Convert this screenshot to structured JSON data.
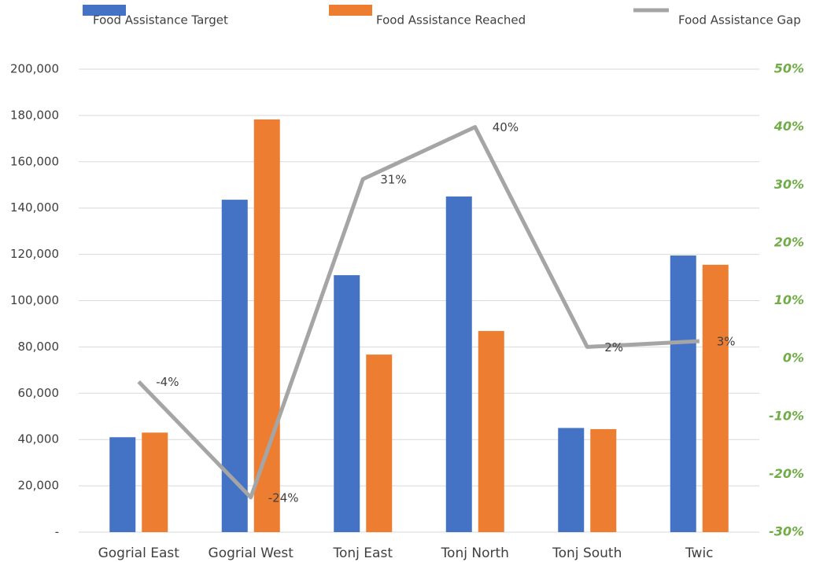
{
  "chart_data": {
    "type": "bar-line",
    "categories": [
      "Gogrial East",
      "Gogrial West",
      "Tonj East",
      "Tonj North",
      "Tonj South",
      "Twic"
    ],
    "series": [
      {
        "name": "Food Assistance Target",
        "color": "#4472c4",
        "values": [
          41000,
          143600,
          111000,
          145000,
          45000,
          119500
        ]
      },
      {
        "name": "Food Assistance Reached",
        "color": "#ed7d31",
        "values": [
          43000,
          178300,
          76700,
          86900,
          44500,
          115500
        ]
      },
      {
        "name": "Food Assistance Gap",
        "color": "#a5a5a5",
        "axis": "y2",
        "values": [
          -4,
          -24,
          31,
          40,
          2,
          3
        ],
        "value_labels": [
          "-4%",
          "-24%",
          "31%",
          "40%",
          "2%",
          "3%"
        ]
      }
    ],
    "ylim": [
      0,
      200000
    ],
    "yticks": [
      {
        "value": 0,
        "label": "-"
      },
      {
        "value": 20000,
        "label": "20,000"
      },
      {
        "value": 40000,
        "label": "40,000"
      },
      {
        "value": 60000,
        "label": "60,000"
      },
      {
        "value": 80000,
        "label": "80,000"
      },
      {
        "value": 100000,
        "label": "100,000"
      },
      {
        "value": 120000,
        "label": "120,000"
      },
      {
        "value": 140000,
        "label": "140,000"
      },
      {
        "value": 160000,
        "label": "160,000"
      },
      {
        "value": 180000,
        "label": "180,000"
      },
      {
        "value": 200000,
        "label": "200,000"
      }
    ],
    "y2lim": [
      -30,
      50
    ],
    "y2ticks": [
      {
        "value": -30,
        "label": "-30%"
      },
      {
        "value": -20,
        "label": "-20%"
      },
      {
        "value": -10,
        "label": "-10%"
      },
      {
        "value": 0,
        "label": "0%"
      },
      {
        "value": 10,
        "label": "10%"
      },
      {
        "value": 20,
        "label": "20%"
      },
      {
        "value": 30,
        "label": "30%"
      },
      {
        "value": 40,
        "label": "40%"
      },
      {
        "value": 50,
        "label": "50%"
      }
    ],
    "grid": true,
    "legend": "top"
  }
}
